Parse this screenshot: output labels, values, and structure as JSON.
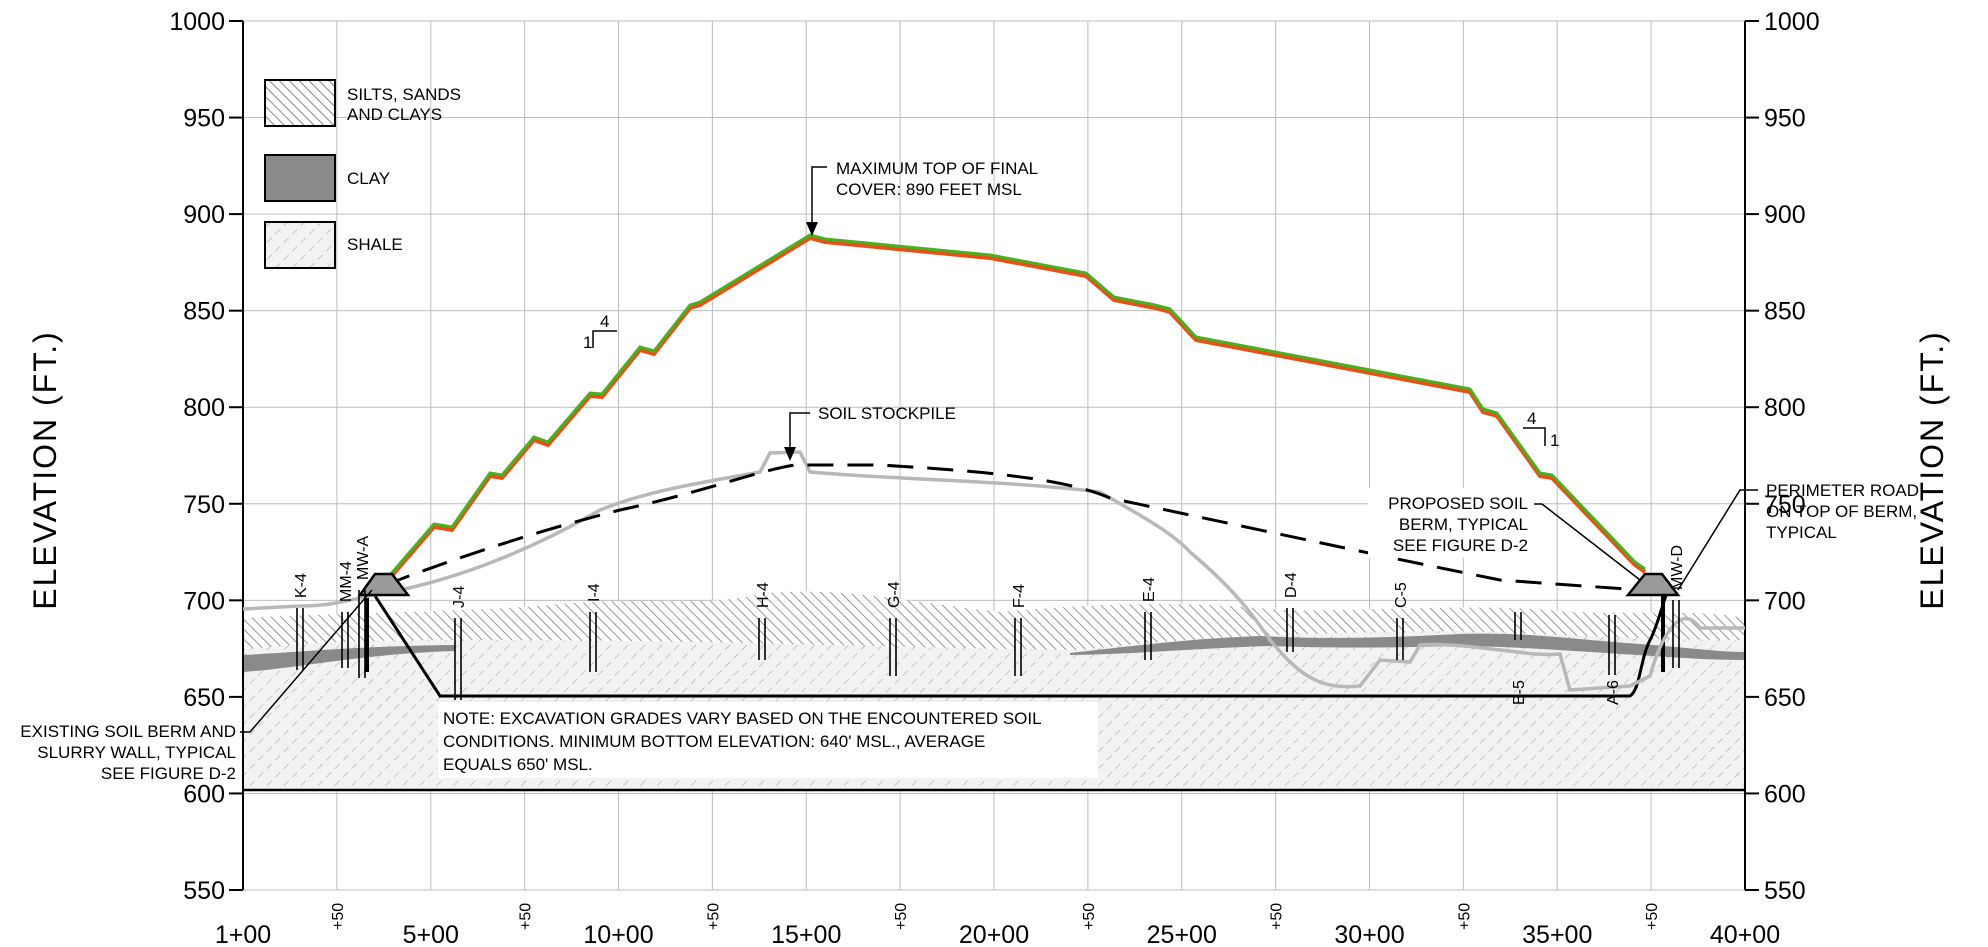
{
  "axes": {
    "left_title": "ELEVATION (FT.)",
    "right_title": "ELEVATION (FT.)",
    "y_ticks": [
      550,
      600,
      650,
      700,
      750,
      800,
      850,
      900,
      950,
      1000
    ],
    "x_stations": [
      "1+00",
      "5+00",
      "10+00",
      "15+00",
      "20+00",
      "25+00",
      "30+00",
      "35+00",
      "40+00"
    ],
    "x_half_label": "+50"
  },
  "legend": [
    {
      "label_lines": [
        "SILTS, SANDS",
        "AND CLAYS"
      ],
      "pattern": "hatch-dense"
    },
    {
      "label_lines": [
        "CLAY"
      ],
      "pattern": "solid-gray"
    },
    {
      "label_lines": [
        "SHALE"
      ],
      "pattern": "hatch-light"
    }
  ],
  "annotations": {
    "max_cover": [
      "MAXIMUM TOP OF FINAL",
      "COVER: 890 FEET MSL"
    ],
    "stockpile": "SOIL STOCKPILE",
    "proposed_berm": [
      "PROPOSED SOIL",
      "BERM, TYPICAL",
      "SEE FIGURE D-2"
    ],
    "perimeter_road": [
      "PERIMETER ROAD",
      "ON TOP OF BERM,",
      "TYPICAL"
    ],
    "existing_berm": [
      "EXISTING SOIL BERM AND",
      "SLURRY WALL, TYPICAL",
      "SEE FIGURE D-2"
    ],
    "note": [
      "NOTE: EXCAVATION GRADES VARY BASED ON THE ENCOUNTERED SOIL",
      "CONDITIONS.  MINIMUM BOTTOM ELEVATION: 640' MSL., AVERAGE",
      "EQUALS 650' MSL."
    ],
    "slope_left": {
      "rise": "1",
      "run": "4"
    },
    "slope_right": {
      "rise": "1",
      "run": "4"
    }
  },
  "wells": [
    "K-4",
    "MM-4",
    "MW-A",
    "J-4",
    "I-4",
    "H-4",
    "G-4",
    "F-4",
    "E-4",
    "D-4",
    "C-5",
    "B-5",
    "A-6",
    "MW-D"
  ],
  "colors": {
    "final_cover_top": "#4caf1f",
    "final_cover_bottom": "#e8501a",
    "existing_ground": "#b8b8b8",
    "clay": "#8a8a8a",
    "grid": "#bdbdbd"
  }
}
